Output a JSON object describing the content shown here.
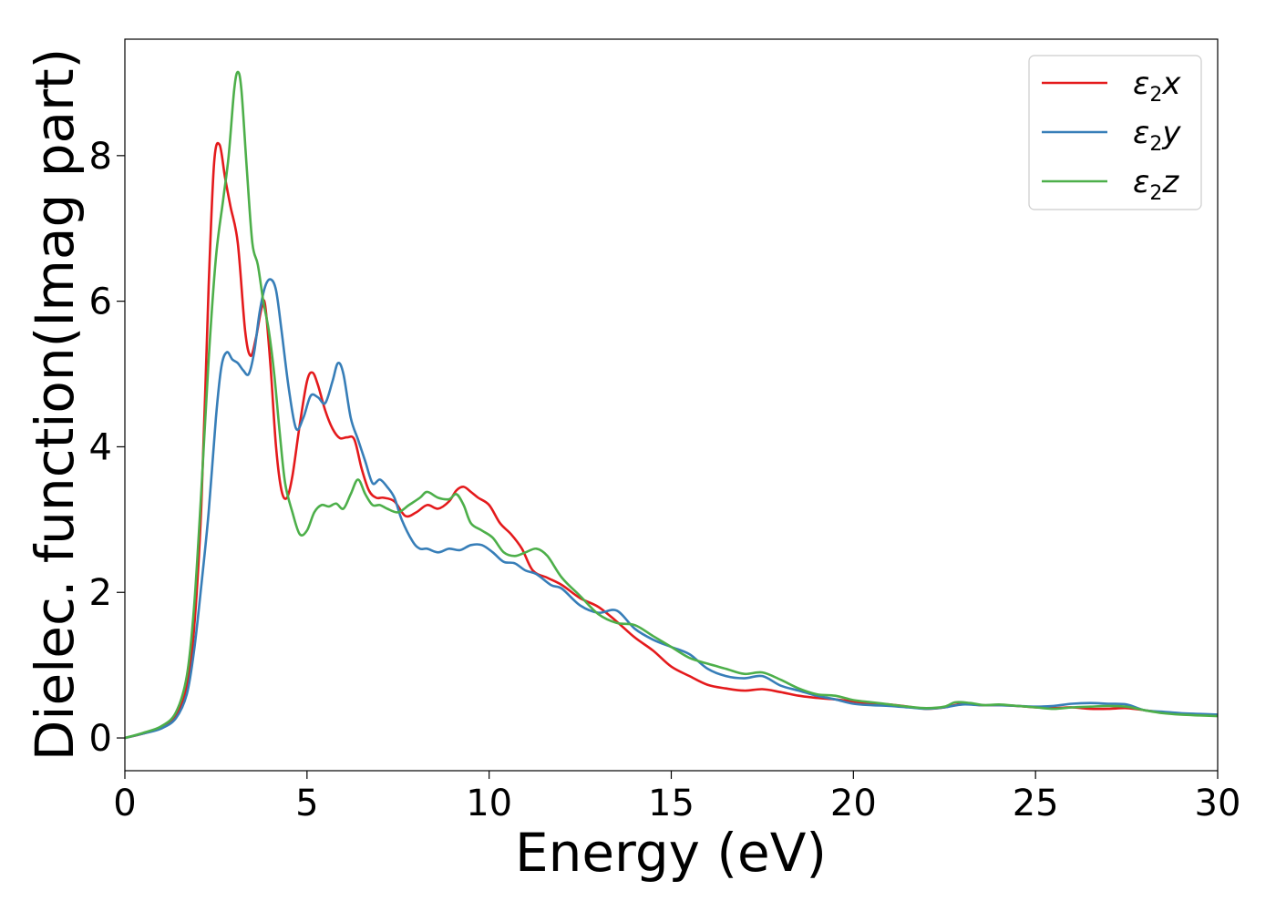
{
  "chart_data": {
    "type": "line",
    "title": "",
    "xlabel": "Energy (eV)",
    "ylabel": "Dielec. function(Imag part)",
    "xlim": [
      0,
      30
    ],
    "ylim": [
      -0.45,
      9.6
    ],
    "xticks": [
      0,
      5,
      10,
      15,
      20,
      25,
      30
    ],
    "yticks": [
      0,
      2,
      4,
      6,
      8
    ],
    "grid": false,
    "legend_position": "top-right",
    "series": [
      {
        "name_base": "ε",
        "name_sub": "2",
        "name_suffix": "x",
        "color": "#e41a1c",
        "x": [
          0,
          0.5,
          1.0,
          1.4,
          1.7,
          1.9,
          2.1,
          2.3,
          2.45,
          2.6,
          2.75,
          2.9,
          3.1,
          3.3,
          3.45,
          3.6,
          3.75,
          3.85,
          4.0,
          4.15,
          4.3,
          4.45,
          4.6,
          4.8,
          5.0,
          5.15,
          5.3,
          5.5,
          5.7,
          5.9,
          6.1,
          6.3,
          6.5,
          6.7,
          6.9,
          7.1,
          7.4,
          7.7,
          8.0,
          8.3,
          8.6,
          8.9,
          9.1,
          9.3,
          9.5,
          9.7,
          10.0,
          10.3,
          10.6,
          10.9,
          11.2,
          11.6,
          12.0,
          12.5,
          13.0,
          13.5,
          14.0,
          14.5,
          15.0,
          15.5,
          16.0,
          16.5,
          17.0,
          17.5,
          18.0,
          18.5,
          19.0,
          19.5,
          20.0,
          20.5,
          21.0,
          21.5,
          22.0,
          22.5,
          23.0,
          23.5,
          24.0,
          24.5,
          25.0,
          25.5,
          26.0,
          26.5,
          27.0,
          27.5,
          28.0,
          28.5,
          29.0,
          29.5,
          30.0
        ],
        "y": [
          0.0,
          0.06,
          0.14,
          0.3,
          0.7,
          1.5,
          3.2,
          6.2,
          7.9,
          8.15,
          7.7,
          7.3,
          6.8,
          5.6,
          5.25,
          5.5,
          5.9,
          5.95,
          5.1,
          4.0,
          3.4,
          3.3,
          3.6,
          4.3,
          4.9,
          5.02,
          4.85,
          4.5,
          4.25,
          4.12,
          4.13,
          4.1,
          3.7,
          3.4,
          3.3,
          3.3,
          3.25,
          3.05,
          3.1,
          3.2,
          3.15,
          3.25,
          3.4,
          3.45,
          3.38,
          3.3,
          3.2,
          2.95,
          2.8,
          2.6,
          2.3,
          2.2,
          2.1,
          1.92,
          1.8,
          1.6,
          1.38,
          1.2,
          0.98,
          0.85,
          0.73,
          0.68,
          0.65,
          0.67,
          0.63,
          0.58,
          0.55,
          0.53,
          0.5,
          0.47,
          0.46,
          0.43,
          0.4,
          0.42,
          0.47,
          0.45,
          0.45,
          0.44,
          0.42,
          0.41,
          0.42,
          0.4,
          0.4,
          0.41,
          0.38,
          0.35,
          0.33,
          0.32,
          0.31
        ]
      },
      {
        "name_base": "ε",
        "name_sub": "2",
        "name_suffix": "y",
        "color": "#377eb8",
        "x": [
          0,
          0.5,
          1.0,
          1.4,
          1.7,
          1.9,
          2.1,
          2.3,
          2.5,
          2.65,
          2.8,
          2.95,
          3.1,
          3.25,
          3.4,
          3.55,
          3.7,
          3.85,
          4.0,
          4.15,
          4.3,
          4.5,
          4.7,
          4.9,
          5.1,
          5.3,
          5.5,
          5.7,
          5.85,
          6.0,
          6.2,
          6.4,
          6.6,
          6.8,
          7.0,
          7.2,
          7.4,
          7.6,
          7.9,
          8.1,
          8.3,
          8.6,
          8.9,
          9.2,
          9.5,
          9.8,
          10.1,
          10.4,
          10.7,
          11.0,
          11.3,
          11.7,
          12.0,
          12.5,
          13.0,
          13.5,
          14.0,
          14.5,
          15.0,
          15.5,
          16.0,
          16.5,
          17.0,
          17.5,
          18.0,
          18.5,
          19.0,
          19.5,
          20.0,
          20.5,
          21.0,
          21.5,
          22.0,
          22.5,
          23.0,
          23.5,
          24.0,
          24.5,
          25.0,
          25.5,
          26.0,
          26.5,
          27.0,
          27.5,
          28.0,
          28.5,
          29.0,
          29.5,
          30.0
        ],
        "y": [
          0.0,
          0.06,
          0.13,
          0.27,
          0.6,
          1.2,
          2.1,
          3.1,
          4.4,
          5.1,
          5.3,
          5.2,
          5.15,
          5.05,
          5.0,
          5.3,
          5.85,
          6.2,
          6.3,
          6.15,
          5.6,
          4.8,
          4.25,
          4.4,
          4.7,
          4.68,
          4.6,
          4.9,
          5.15,
          5.0,
          4.4,
          4.1,
          3.8,
          3.5,
          3.55,
          3.45,
          3.3,
          3.0,
          2.7,
          2.6,
          2.6,
          2.55,
          2.6,
          2.58,
          2.65,
          2.65,
          2.55,
          2.42,
          2.4,
          2.3,
          2.25,
          2.1,
          2.05,
          1.82,
          1.72,
          1.75,
          1.5,
          1.35,
          1.25,
          1.15,
          0.95,
          0.85,
          0.82,
          0.85,
          0.72,
          0.65,
          0.58,
          0.53,
          0.47,
          0.45,
          0.44,
          0.42,
          0.4,
          0.42,
          0.46,
          0.45,
          0.45,
          0.44,
          0.43,
          0.44,
          0.47,
          0.48,
          0.47,
          0.46,
          0.38,
          0.36,
          0.34,
          0.33,
          0.32
        ]
      },
      {
        "name_base": "ε",
        "name_sub": "2",
        "name_suffix": "z",
        "color": "#4daf4a",
        "x": [
          0,
          0.5,
          1.0,
          1.4,
          1.7,
          1.9,
          2.1,
          2.3,
          2.5,
          2.7,
          2.85,
          3.0,
          3.1,
          3.2,
          3.35,
          3.5,
          3.65,
          3.8,
          3.95,
          4.1,
          4.25,
          4.4,
          4.6,
          4.8,
          5.0,
          5.2,
          5.4,
          5.6,
          5.8,
          6.0,
          6.2,
          6.4,
          6.6,
          6.8,
          7.0,
          7.2,
          7.5,
          7.8,
          8.1,
          8.3,
          8.6,
          8.9,
          9.1,
          9.3,
          9.5,
          9.8,
          10.1,
          10.4,
          10.7,
          11.0,
          11.3,
          11.6,
          12.0,
          12.5,
          13.0,
          13.5,
          14.0,
          14.5,
          15.0,
          15.5,
          16.0,
          16.5,
          17.0,
          17.5,
          18.0,
          18.5,
          19.0,
          19.5,
          20.0,
          20.5,
          21.0,
          21.5,
          22.0,
          22.5,
          22.8,
          23.2,
          23.6,
          24.0,
          24.5,
          25.0,
          25.5,
          26.0,
          26.5,
          27.0,
          27.5,
          28.0,
          28.5,
          29.0,
          29.5,
          30.0
        ],
        "y": [
          0.0,
          0.07,
          0.16,
          0.35,
          0.85,
          1.8,
          3.4,
          5.2,
          6.6,
          7.4,
          8.0,
          8.9,
          9.15,
          8.9,
          7.8,
          6.8,
          6.5,
          6.0,
          5.6,
          5.0,
          4.2,
          3.5,
          3.1,
          2.8,
          2.85,
          3.1,
          3.2,
          3.18,
          3.22,
          3.15,
          3.35,
          3.55,
          3.35,
          3.2,
          3.2,
          3.15,
          3.1,
          3.2,
          3.3,
          3.38,
          3.3,
          3.28,
          3.35,
          3.2,
          2.95,
          2.85,
          2.75,
          2.55,
          2.5,
          2.55,
          2.6,
          2.5,
          2.2,
          1.95,
          1.7,
          1.58,
          1.55,
          1.4,
          1.25,
          1.1,
          1.02,
          0.95,
          0.88,
          0.9,
          0.8,
          0.68,
          0.6,
          0.58,
          0.52,
          0.49,
          0.46,
          0.43,
          0.41,
          0.43,
          0.49,
          0.48,
          0.45,
          0.46,
          0.44,
          0.42,
          0.4,
          0.42,
          0.43,
          0.44,
          0.43,
          0.38,
          0.34,
          0.32,
          0.31,
          0.3
        ]
      }
    ]
  }
}
